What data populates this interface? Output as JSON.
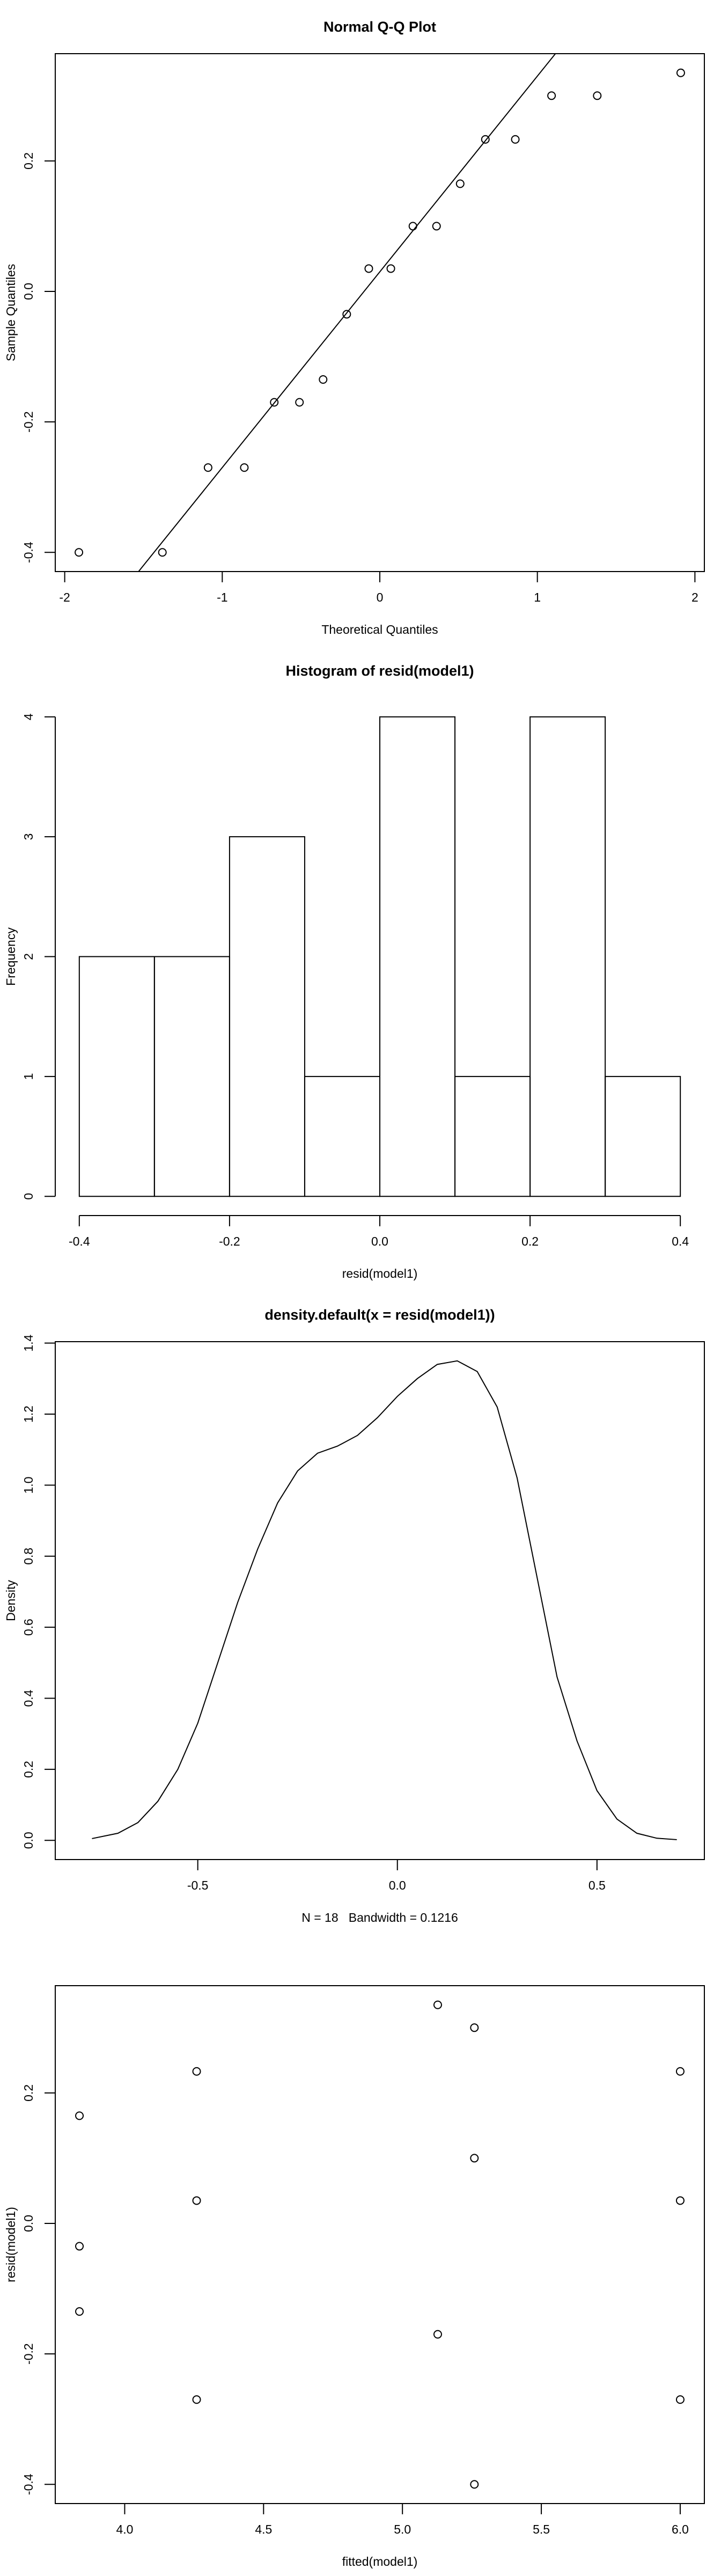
{
  "chart_data": [
    {
      "type": "qq",
      "title": "Normal Q-Q Plot",
      "xlabel": "Theoretical Quantiles",
      "ylabel": "Sample Quantiles",
      "x": [
        -1.91,
        -1.38,
        -1.09,
        -0.86,
        -0.67,
        -0.51,
        -0.36,
        -0.21,
        -0.07,
        0.07,
        0.21,
        0.36,
        0.51,
        0.67,
        0.86,
        1.09,
        1.38,
        1.91
      ],
      "y": [
        -0.4,
        -0.4,
        -0.27,
        -0.27,
        -0.17,
        -0.17,
        -0.135,
        -0.035,
        0.035,
        0.035,
        0.1,
        0.1,
        0.165,
        0.233,
        0.233,
        0.3,
        0.3,
        0.335
      ],
      "reference_line": {
        "slope": 0.3,
        "intercept": 0.03
      },
      "xlim": [
        -2.06,
        2.06
      ],
      "ylim": [
        -0.4294,
        0.3644
      ],
      "xticks": [
        -2,
        -1,
        0,
        1,
        2
      ],
      "yticks": [
        {
          "value": -0.4,
          "label": "-0.4"
        },
        {
          "value": -0.2,
          "label": "-0.2"
        },
        {
          "value": 0,
          "label": "0.0"
        },
        {
          "value": 0.2,
          "label": "0.2"
        }
      ],
      "box": true
    },
    {
      "type": "histogram",
      "title": "Histogram of resid(model1)",
      "xlabel": "resid(model1)",
      "ylabel": "Frequency",
      "bins": [
        -0.4,
        -0.3,
        -0.2,
        -0.1,
        0,
        0.1,
        0.2,
        0.3,
        0.4
      ],
      "counts": [
        2,
        2,
        3,
        1,
        4,
        1,
        4,
        1
      ],
      "xlim": [
        -0.432,
        0.432
      ],
      "ylim": [
        -0.16,
        4.16
      ],
      "xticks": [
        {
          "value": -0.4,
          "label": "-0.4"
        },
        {
          "value": -0.2,
          "label": "-0.2"
        },
        {
          "value": 0,
          "label": "0.0"
        },
        {
          "value": 0.2,
          "label": "0.2"
        },
        {
          "value": 0.4,
          "label": "0.4"
        }
      ],
      "yticks": [
        0,
        1,
        2,
        3,
        4
      ],
      "box": false
    },
    {
      "type": "line",
      "title": "density.default(x = resid(model1))",
      "xlabel": "N = 18   Bandwidth = 0.1216",
      "ylabel": "Density",
      "x": [
        -0.765,
        -0.7,
        -0.65,
        -0.6,
        -0.55,
        -0.5,
        -0.45,
        -0.4,
        -0.35,
        -0.3,
        -0.25,
        -0.2,
        -0.15,
        -0.1,
        -0.05,
        0,
        0.05,
        0.1,
        0.15,
        0.2,
        0.25,
        0.3,
        0.35,
        0.4,
        0.45,
        0.5,
        0.55,
        0.6,
        0.65,
        0.7
      ],
      "y": [
        0.005,
        0.02,
        0.05,
        0.11,
        0.2,
        0.33,
        0.5,
        0.67,
        0.82,
        0.95,
        1.04,
        1.09,
        1.11,
        1.14,
        1.19,
        1.25,
        1.3,
        1.34,
        1.35,
        1.32,
        1.22,
        1.02,
        0.74,
        0.46,
        0.28,
        0.14,
        0.06,
        0.02,
        0.006,
        0.002
      ],
      "xlim": [
        -0.857,
        0.769
      ],
      "ylim": [
        -0.054,
        1.404
      ],
      "xticks": [
        {
          "value": -0.5,
          "label": "-0.5"
        },
        {
          "value": 0,
          "label": "0.0"
        },
        {
          "value": 0.5,
          "label": "0.5"
        }
      ],
      "yticks": [
        {
          "value": 0,
          "label": "0.0"
        },
        {
          "value": 0.2,
          "label": "0.2"
        },
        {
          "value": 0.4,
          "label": "0.4"
        },
        {
          "value": 0.6,
          "label": "0.6"
        },
        {
          "value": 0.8,
          "label": "0.8"
        },
        {
          "value": 1,
          "label": "1.0"
        },
        {
          "value": 1.2,
          "label": "1.2"
        },
        {
          "value": 1.4,
          "label": "1.4"
        }
      ],
      "box": true
    },
    {
      "type": "scatter",
      "xlabel": "fitted(model1)",
      "ylabel": "resid(model1)",
      "x": [
        3.837,
        3.837,
        3.837,
        4.259,
        4.259,
        4.259,
        5.127,
        5.127,
        5.259,
        5.259,
        5.259,
        6.0,
        6.0,
        6.0
      ],
      "y": [
        0.165,
        -0.035,
        -0.135,
        0.233,
        0.035,
        -0.27,
        0.335,
        -0.17,
        0.3,
        0.1,
        -0.4,
        0.233,
        0.035,
        -0.27
      ],
      "xlim": [
        3.75,
        6.087
      ],
      "ylim": [
        -0.4294,
        0.3644
      ],
      "xticks": [
        {
          "value": 4,
          "label": "4.0"
        },
        {
          "value": 4.5,
          "label": "4.5"
        },
        {
          "value": 5,
          "label": "5.0"
        },
        {
          "value": 5.5,
          "label": "5.5"
        },
        {
          "value": 6,
          "label": "6.0"
        }
      ],
      "yticks": [
        {
          "value": -0.4,
          "label": "-0.4"
        },
        {
          "value": -0.2,
          "label": "-0.2"
        },
        {
          "value": 0,
          "label": "0.0"
        },
        {
          "value": 0.2,
          "label": "0.2"
        }
      ],
      "box": true
    }
  ]
}
